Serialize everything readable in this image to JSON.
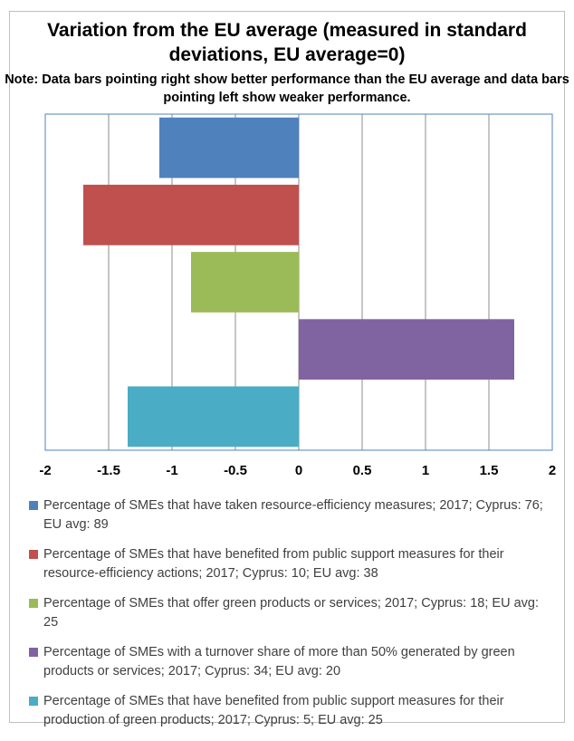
{
  "chart_data": {
    "type": "bar",
    "orientation": "horizontal",
    "title": "Variation from the EU average (measured in standard deviations, EU average=0)",
    "subtitle": "Note: Data bars pointing right show better performance than the EU average and data bars pointing left show weaker performance.",
    "xlim": [
      -2,
      2
    ],
    "xticks": [
      "-2",
      "-1.5",
      "-1",
      "-0.5",
      "0",
      "0.5",
      "1",
      "1.5",
      "2"
    ],
    "xtick_values": [
      -2,
      -1.5,
      -1,
      -0.5,
      0,
      0.5,
      1,
      1.5,
      2
    ],
    "grid": "vertical",
    "legend_position": "bottom",
    "series": [
      {
        "name": "Percentage of SMEs that have taken resource-efficiency measures; 2017; Cyprus: 76; EU avg: 89",
        "value": -1.1,
        "color": "#4f81bd"
      },
      {
        "name": "Percentage of SMEs that have benefited from public support measures for their resource-efficiency actions; 2017; Cyprus: 10; EU avg: 38",
        "value": -1.7,
        "color": "#c0504d"
      },
      {
        "name": "Percentage of SMEs that offer green products or services; 2017; Cyprus: 18; EU avg: 25",
        "value": -0.85,
        "color": "#9bbb59"
      },
      {
        "name": "Percentage of SMEs with a turnover share of more than 50% generated by green products or services; 2017; Cyprus: 34; EU avg: 20",
        "value": 1.7,
        "color": "#8064a2"
      },
      {
        "name": "Percentage of SMEs that have benefited from public support measures for their production of green products; 2017; Cyprus: 5; EU avg: 25",
        "value": -1.35,
        "color": "#4bacc6"
      }
    ]
  }
}
